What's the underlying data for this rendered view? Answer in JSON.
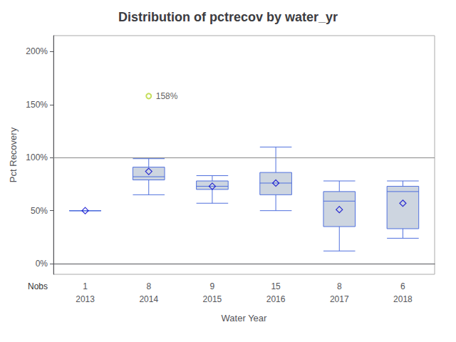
{
  "chart_data": {
    "type": "box",
    "title": "Distribution of pctrecov by water_yr",
    "xlabel": "Water Year",
    "ylabel": "Pct Recovery",
    "categories": [
      "2013",
      "2014",
      "2015",
      "2016",
      "2017",
      "2018"
    ],
    "boxes": [
      {
        "min": 50,
        "q1": 50,
        "median": 50,
        "q3": 50,
        "max": 50
      },
      {
        "min": 65,
        "q1": 79,
        "median": 82,
        "q3": 91,
        "max": 99
      },
      {
        "min": 57,
        "q1": 70,
        "median": 73,
        "q3": 78,
        "max": 83
      },
      {
        "min": 50,
        "q1": 65,
        "median": 76,
        "q3": 86,
        "max": 110
      },
      {
        "min": 12,
        "q1": 35,
        "median": 59,
        "q3": 68,
        "max": 78
      },
      {
        "min": 24,
        "q1": 33,
        "median": 68,
        "q3": 73,
        "max": 78
      }
    ],
    "means": [
      50,
      87,
      73,
      76,
      51,
      57
    ],
    "fliers": [
      [],
      [
        158
      ],
      [],
      [],
      [],
      []
    ],
    "nobs_label": "Nobs",
    "nobs": [
      1,
      8,
      9,
      15,
      8,
      6
    ],
    "annotations": [
      {
        "text": "158%",
        "x": "2014",
        "y": 158
      }
    ],
    "reference_line": {
      "y": 100,
      "color": "#888888"
    },
    "color": "#cdd5e0",
    "marker": "diamond",
    "ylim": [
      -10,
      215
    ],
    "yticks": [
      {
        "value": 0,
        "label": "0%"
      },
      {
        "value": 50,
        "label": "50%"
      },
      {
        "value": 100,
        "label": "100%"
      },
      {
        "value": 150,
        "label": "150%"
      },
      {
        "value": 200,
        "label": "200%"
      }
    ],
    "grid": false
  }
}
